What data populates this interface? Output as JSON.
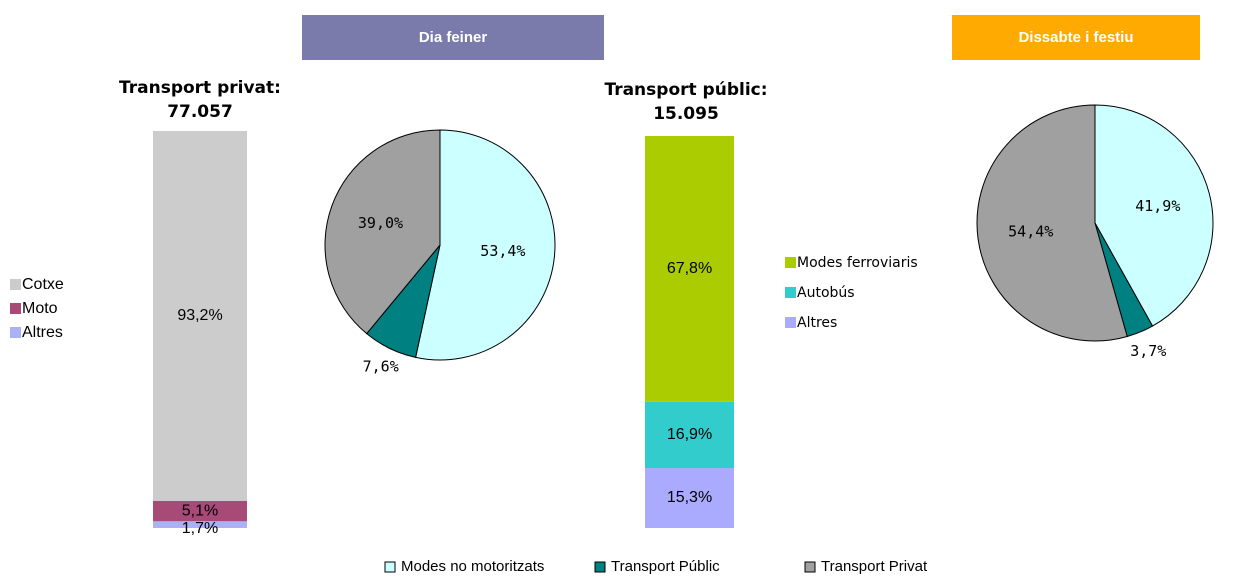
{
  "chart_data": [
    {
      "type": "bar",
      "title": "Transport privat:",
      "subtitle": "77.057",
      "stacked": true,
      "ylim": [
        0,
        100
      ],
      "series": [
        {
          "name": "Cotxe",
          "color": "#cccccc",
          "values": [
            93.2
          ],
          "value_labels": [
            "93,2%"
          ]
        },
        {
          "name": "Moto",
          "color": "#a84a78",
          "values": [
            5.1
          ],
          "value_labels": [
            "5,1%"
          ]
        },
        {
          "name": "Altres",
          "color": "#aab2f5",
          "values": [
            1.7
          ],
          "value_labels": [
            "1,7%"
          ]
        }
      ]
    },
    {
      "type": "pie",
      "title": "Dia feiner",
      "values": [
        53.4,
        7.6,
        39.0
      ],
      "value_labels": [
        "53,4%",
        "7,6%",
        "39,0%"
      ]
    },
    {
      "type": "bar",
      "title": "Transport públic:",
      "subtitle": "15.095",
      "stacked": true,
      "ylim": [
        0,
        100
      ],
      "series": [
        {
          "name": "Modes ferroviaris",
          "color": "#aacc00",
          "values": [
            67.8
          ],
          "value_labels": [
            "67,8%"
          ]
        },
        {
          "name": "Autobús",
          "color": "#33cccc",
          "values": [
            16.9
          ],
          "value_labels": [
            "16,9%"
          ]
        },
        {
          "name": "Altres",
          "color": "#aaaaff",
          "values": [
            15.3
          ],
          "value_labels": [
            "15,3%"
          ]
        }
      ]
    },
    {
      "type": "pie",
      "title": "Dissabte i festiu",
      "values": [
        41.9,
        3.7,
        54.4
      ],
      "value_labels": [
        "41,9%",
        "3,7%",
        "54,4%"
      ]
    }
  ],
  "legend": {
    "labels": [
      "Modes no motoritzats",
      "Transport Públic",
      "Transport Privat"
    ],
    "colors": [
      "#ccffff",
      "#008080",
      "#a0a0a0"
    ]
  }
}
